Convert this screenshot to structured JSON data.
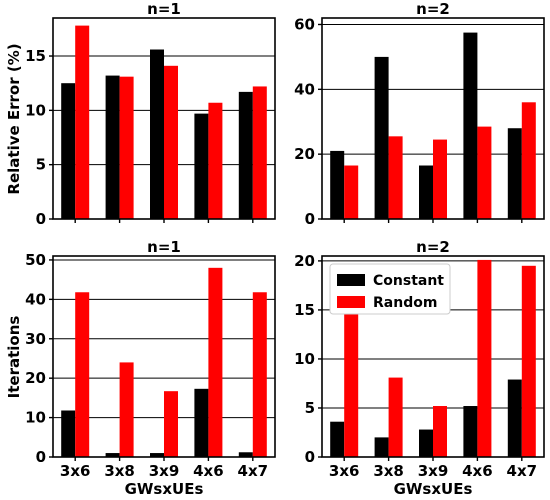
{
  "figure": {
    "ylabel_top": "Relative Error (%)",
    "ylabel_bottom": "Iterations",
    "xlabel": "GWsxUEs"
  },
  "colors": {
    "Constant": "#000000",
    "Random": "#ff0000"
  },
  "chart_data": [
    {
      "type": "bar",
      "title": "n=1",
      "categories": [
        "3x6",
        "3x8",
        "3x9",
        "4x6",
        "4x7"
      ],
      "series": [
        {
          "name": "Constant",
          "values": [
            12.5,
            13.2,
            15.6,
            9.7,
            11.7
          ]
        },
        {
          "name": "Random",
          "values": [
            17.8,
            13.1,
            14.1,
            10.7,
            12.2
          ]
        }
      ],
      "ylim": [
        0,
        18.5
      ],
      "yticks": [
        0,
        5,
        10,
        15
      ],
      "ylabel": "Relative Error (%)",
      "xlabel": "",
      "show_xticklabels": false,
      "grid": "y"
    },
    {
      "type": "bar",
      "title": "n=2",
      "categories": [
        "3x6",
        "3x8",
        "3x9",
        "4x6",
        "4x7"
      ],
      "series": [
        {
          "name": "Constant",
          "values": [
            21,
            50,
            16.5,
            57.5,
            28
          ]
        },
        {
          "name": "Random",
          "values": [
            16.5,
            25.5,
            24.5,
            28.5,
            36
          ]
        }
      ],
      "ylim": [
        0,
        62
      ],
      "yticks": [
        0,
        20,
        40,
        60
      ],
      "ylabel": "",
      "xlabel": "",
      "show_xticklabels": false,
      "grid": "y"
    },
    {
      "type": "bar",
      "title": "n=1",
      "categories": [
        "3x6",
        "3x8",
        "3x9",
        "4x6",
        "4x7"
      ],
      "series": [
        {
          "name": "Constant",
          "values": [
            11.8,
            1,
            1,
            17.3,
            1.2
          ]
        },
        {
          "name": "Random",
          "values": [
            41.8,
            24,
            16.7,
            48,
            41.8
          ]
        }
      ],
      "ylim": [
        0,
        51
      ],
      "yticks": [
        0,
        10,
        20,
        30,
        40,
        50
      ],
      "ylabel": "Iterations",
      "xlabel": "GWsxUEs",
      "show_xticklabels": true,
      "grid": "y"
    },
    {
      "type": "bar",
      "title": "n=2",
      "categories": [
        "3x6",
        "3x8",
        "3x9",
        "4x6",
        "4x7"
      ],
      "series": [
        {
          "name": "Constant",
          "values": [
            3.6,
            2,
            2.8,
            5.2,
            7.9
          ]
        },
        {
          "name": "Random",
          "values": [
            15.2,
            8.1,
            5.2,
            20.1,
            19.5
          ]
        }
      ],
      "ylim": [
        0,
        20.5
      ],
      "yticks": [
        0,
        5,
        10,
        15,
        20
      ],
      "ylabel": "",
      "xlabel": "GWsxUEs",
      "show_xticklabels": true,
      "grid": "y",
      "legend": {
        "entries": [
          "Constant",
          "Random"
        ],
        "placement": "upper-left"
      }
    }
  ]
}
